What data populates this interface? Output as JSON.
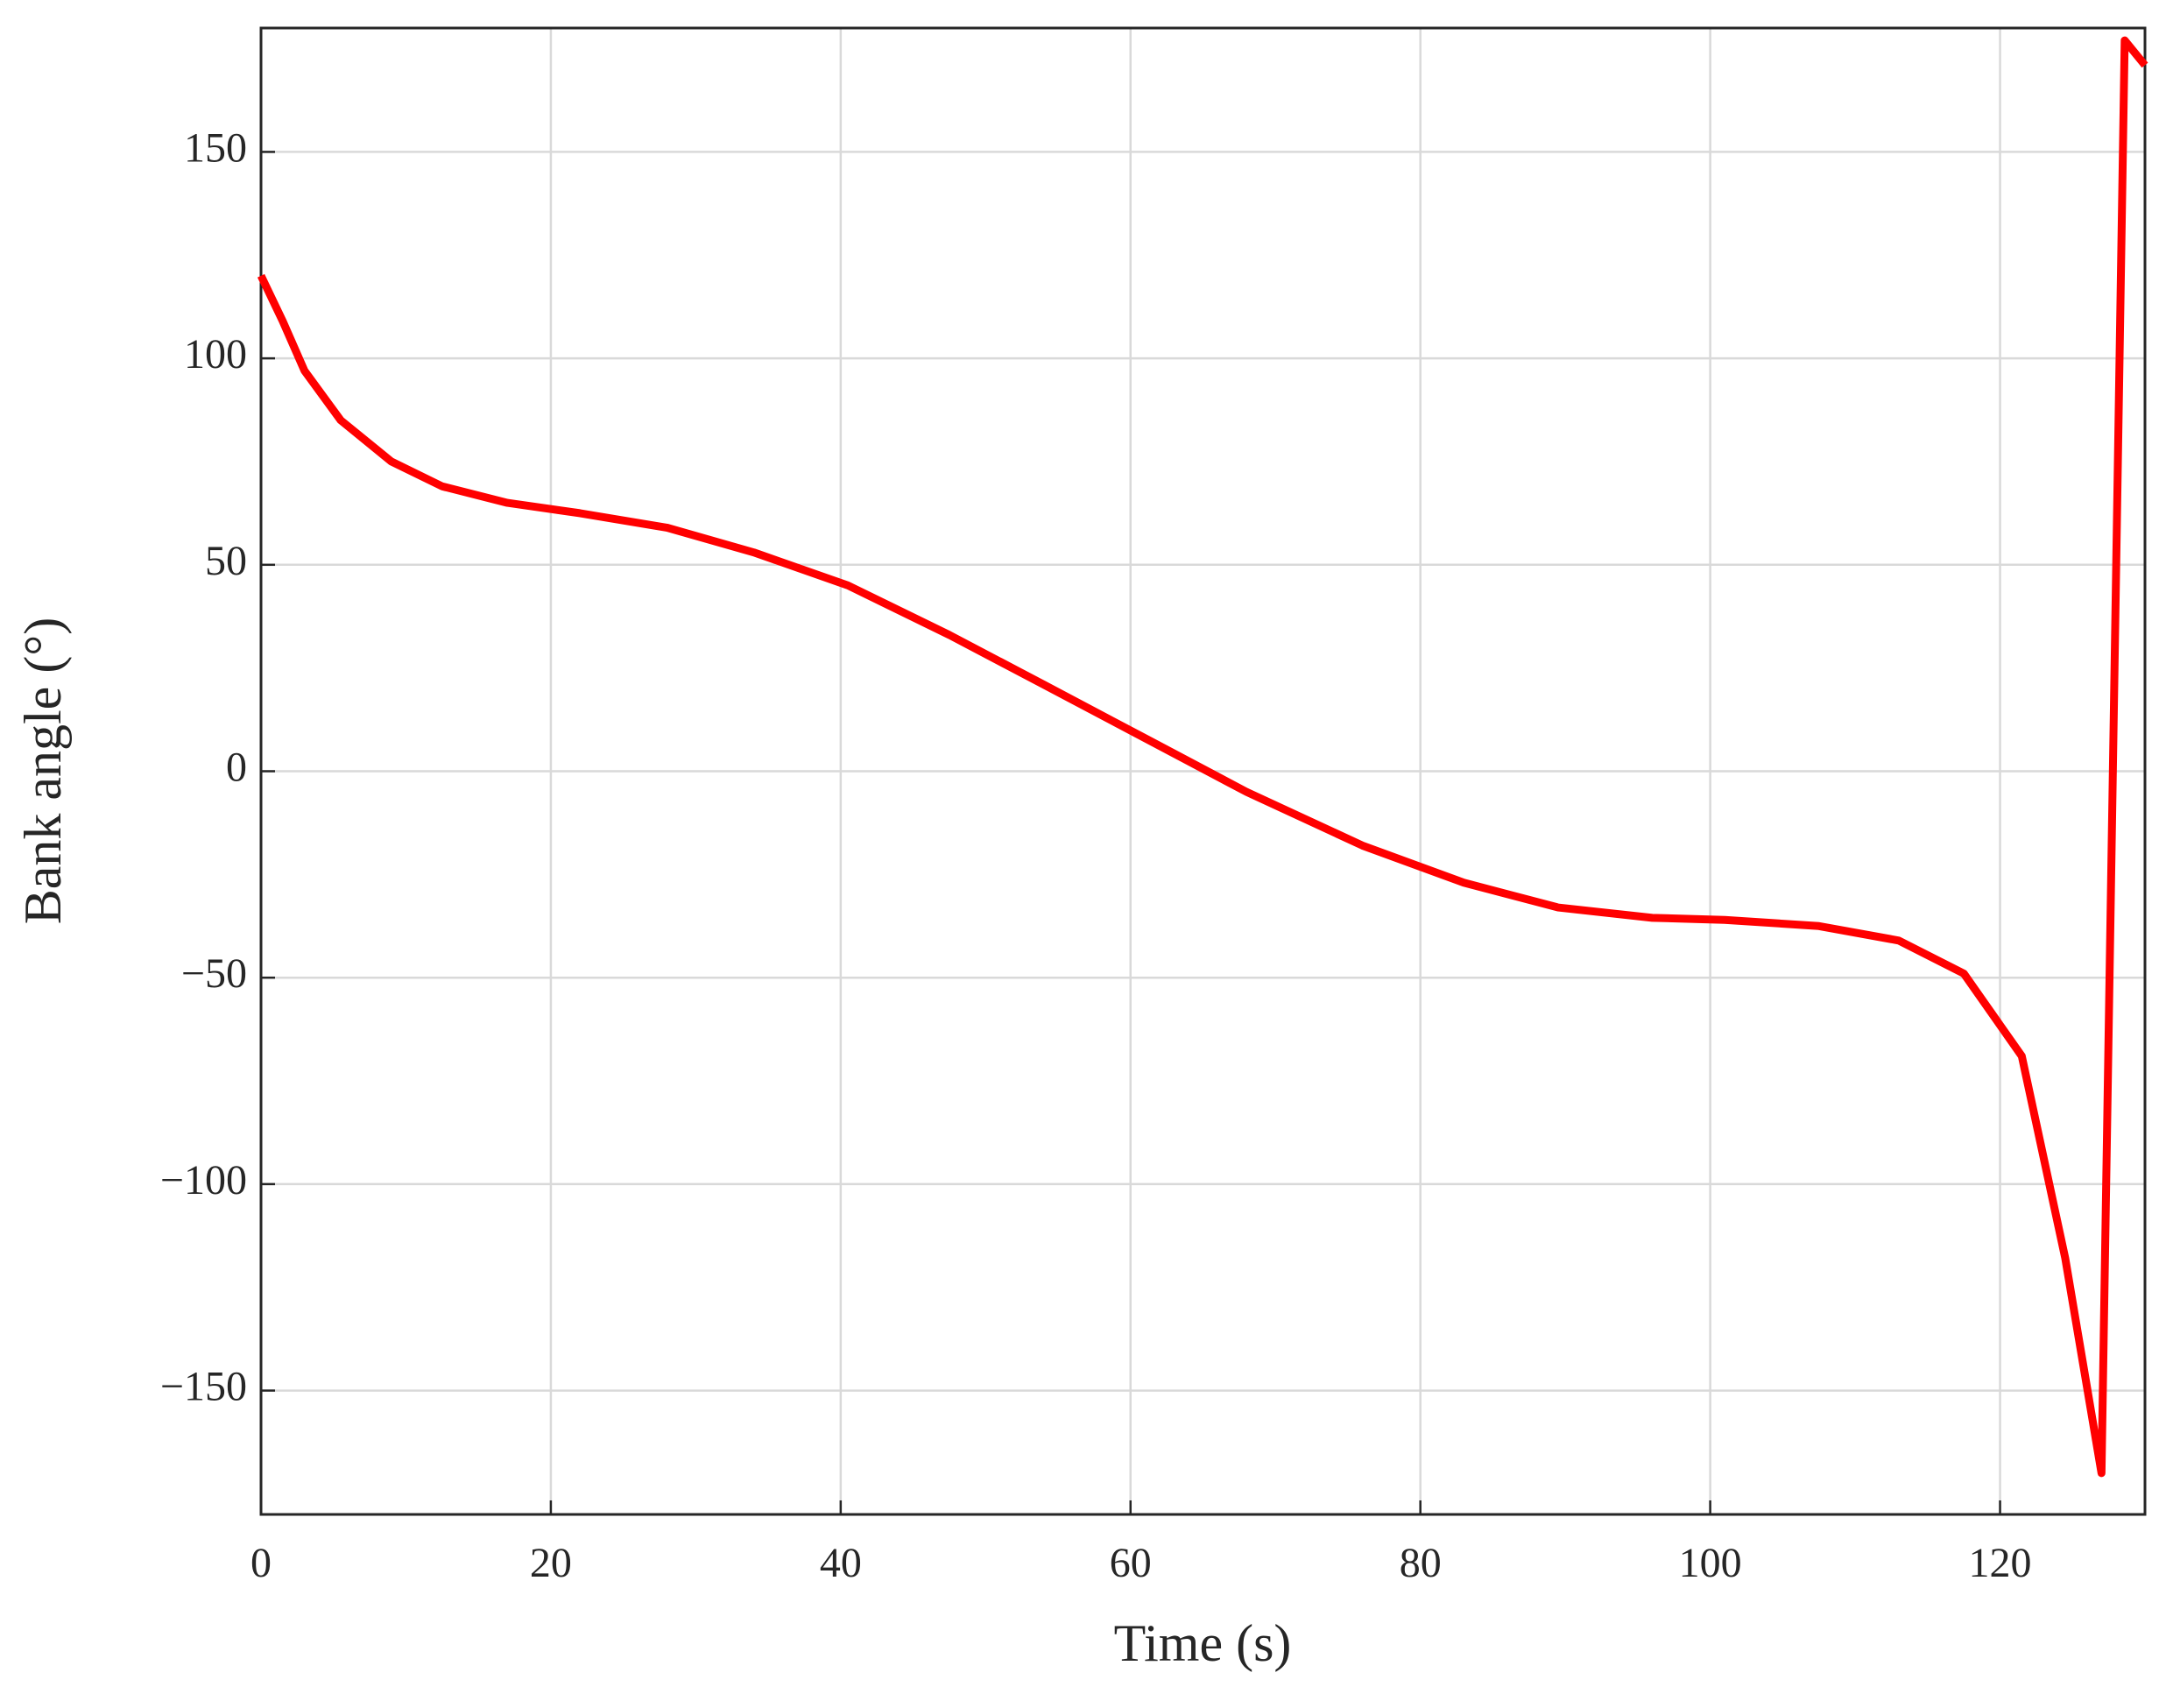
{
  "chart_data": {
    "type": "line",
    "x_label": "Time (s)",
    "y_label": "Bank angle (°)",
    "x": [
      0,
      1.5,
      3,
      5.5,
      9,
      12.5,
      17,
      22,
      28,
      34,
      40.5,
      47.5,
      54,
      61,
      68,
      76,
      83,
      89.5,
      96,
      101,
      107.5,
      113,
      117.5,
      121.5,
      124.5,
      127,
      128.6,
      130
    ],
    "series": [
      {
        "name": "Bank angle",
        "color": "#ff0000",
        "values": [
          120,
          109,
          97,
          85,
          75,
          69,
          65,
          62.5,
          59,
          53,
          45,
          33,
          21,
          8,
          -5,
          -18,
          -27,
          -33,
          -35.5,
          -36,
          -37.5,
          -41,
          -49,
          -69,
          -118,
          -170,
          177,
          171
        ]
      }
    ],
    "xlim": [
      0,
      130
    ],
    "xticks": [
      0,
      20,
      40,
      60,
      80,
      100,
      120
    ],
    "ylim": [
      -180,
      180
    ],
    "yticks": [
      {
        "value": -150,
        "label": "−150"
      },
      {
        "value": -100,
        "label": "−100"
      },
      {
        "value": -50,
        "label": "−50"
      },
      0,
      50,
      100,
      150
    ],
    "grid": true
  }
}
